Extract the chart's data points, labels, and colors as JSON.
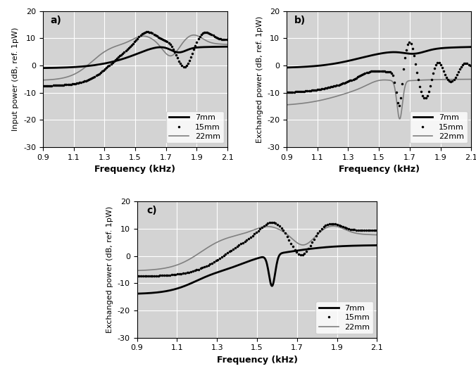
{
  "freq_start": 0.9,
  "freq_end": 2.1,
  "n_points": 500,
  "xlim": [
    0.9,
    2.1
  ],
  "ylim": [
    -30,
    20
  ],
  "xticks": [
    0.9,
    1.1,
    1.3,
    1.5,
    1.7,
    1.9,
    2.1
  ],
  "yticks": [
    -30,
    -20,
    -10,
    0,
    10,
    20
  ],
  "xlabel": "Frequency (kHz)",
  "ylabel_a": "Input power (dB, ref. 1pW)",
  "ylabel_bc": "Exchanged power (dB, ref. 1pW)",
  "labels": [
    "7mm",
    "15mm",
    "22mm"
  ],
  "background_color": "#d8d8d8",
  "grid_color": "white",
  "subplot_labels": [
    "a)",
    "b)",
    "c)"
  ]
}
